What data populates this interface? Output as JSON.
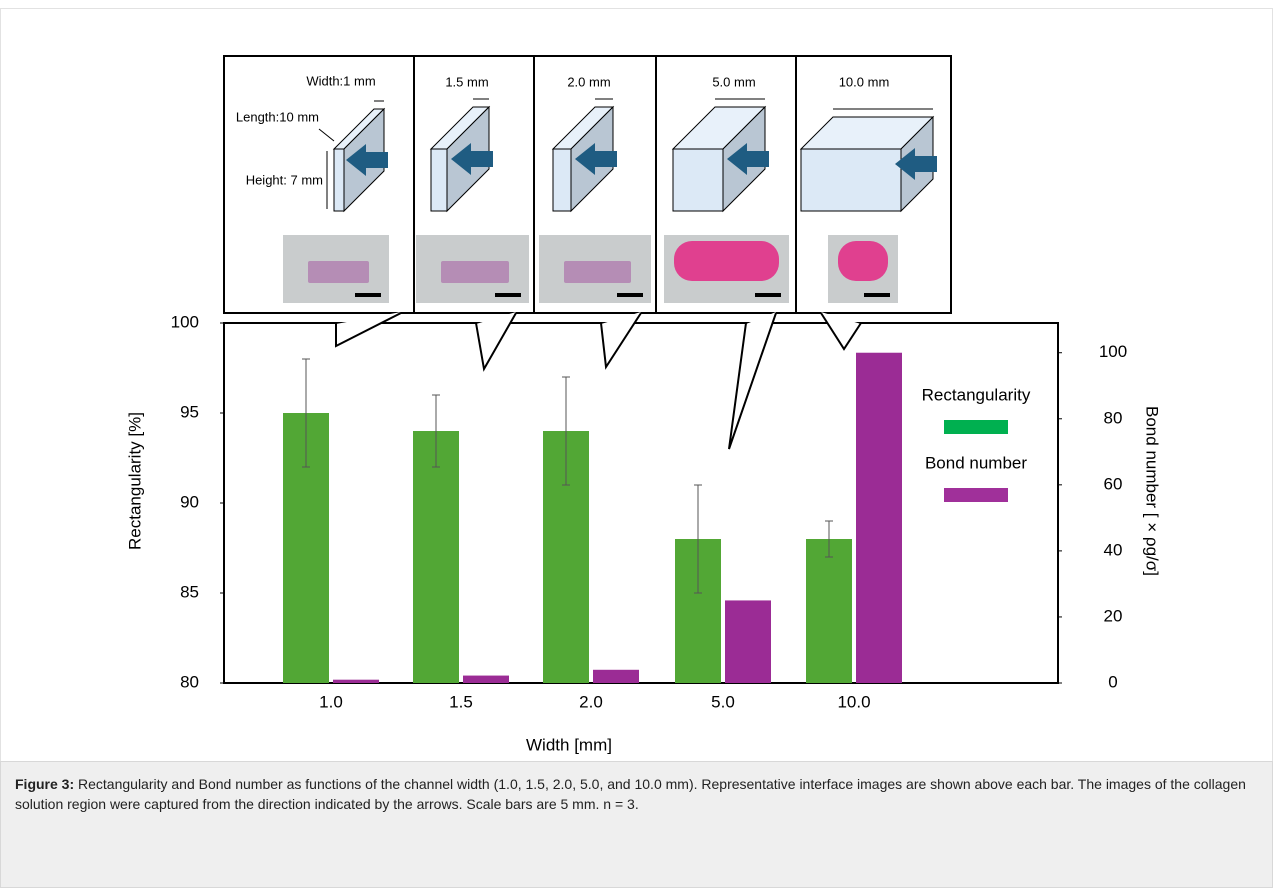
{
  "chart_data": {
    "type": "bar",
    "xlabel": "Width [mm]",
    "ylabel": "Rectangularity [%]",
    "y2label": "Bond number [ × ρg/σ]",
    "categories": [
      "1.0",
      "1.5",
      "2.0",
      "5.0",
      "10.0"
    ],
    "series": [
      {
        "name": "Rectangularity",
        "color": "#52a735",
        "legend_color": "#00b050",
        "values": [
          95,
          94,
          94,
          88,
          88
        ],
        "errors": [
          3,
          2,
          3,
          3,
          1
        ]
      },
      {
        "name": "Bond number",
        "color": "#9b2c95",
        "legend_color": "#a0309a",
        "axis": "y2",
        "values": [
          1,
          2.25,
          4,
          25,
          100
        ]
      }
    ],
    "ylim": [
      80,
      100
    ],
    "yticks": [
      80,
      85,
      90,
      95,
      100
    ],
    "y2lim": [
      0,
      109
    ],
    "y2ticks": [
      0,
      20,
      40,
      60,
      80,
      100
    ],
    "legend": "right"
  },
  "panels": [
    {
      "labels": [
        "Width:1 mm",
        "Length:10 mm",
        "Height: 7 mm"
      ]
    },
    {
      "labels": [
        "1.5 mm"
      ]
    },
    {
      "labels": [
        "2.0 mm"
      ]
    },
    {
      "labels": [
        "5.0 mm"
      ]
    },
    {
      "labels": [
        "10.0 mm"
      ]
    }
  ],
  "caption": {
    "label": "Figure 3:",
    "text": "Rectangularity and Bond number as functions of the channel width (1.0, 1.5, 2.0, 5.0, and 10.0 mm). Representative interface images are shown above each bar. The images of the collagen solution region were captured from the direction indicated by the arrows. Scale bars are 5 mm. n = 3."
  }
}
